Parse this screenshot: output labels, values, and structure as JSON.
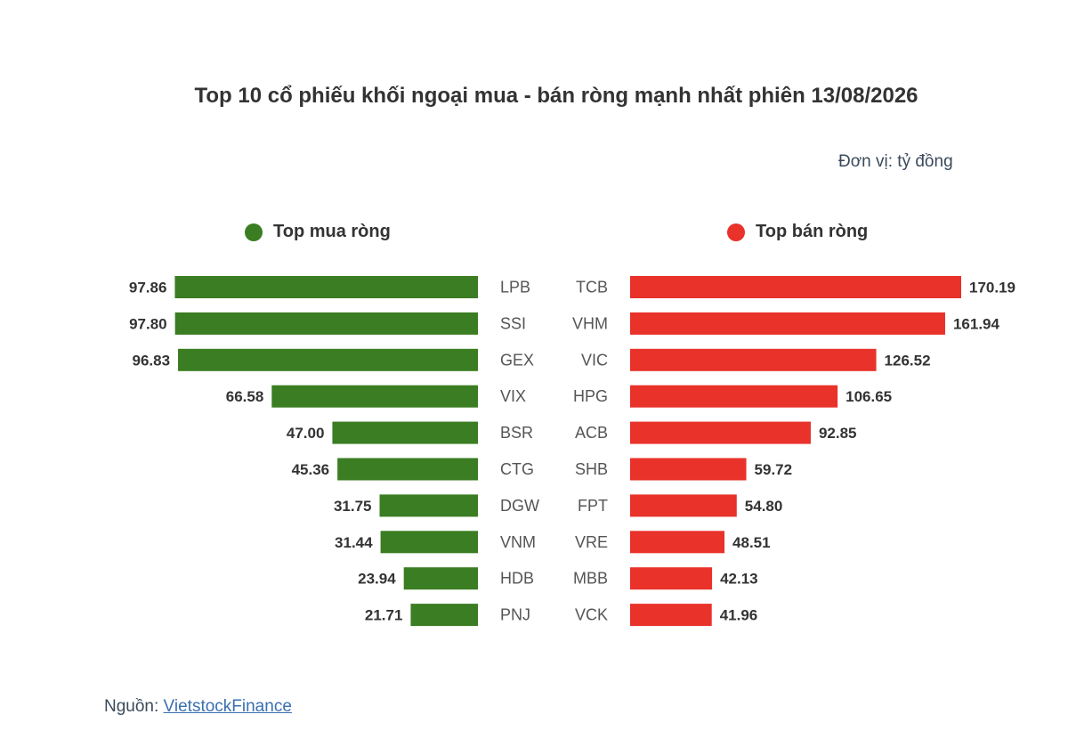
{
  "title": "Top 10 cổ phiếu khối ngoại mua -  bán ròng mạnh nhất phiên 13/08/2026",
  "unit_note": "Đơn vị: tỷ đồng",
  "source": {
    "prefix": "Nguồn: ",
    "link_text": "VietstockFinance"
  },
  "colors": {
    "buy": "#3a7d22",
    "sell": "#e8322a",
    "text": "#333333",
    "ticker": "#555555"
  },
  "chart_data": [
    {
      "type": "bar",
      "legend": "Top mua ròng",
      "color": "#3a7d22",
      "orientation": "horizontal",
      "direction": "leftward",
      "categories": [
        "LPB",
        "SSI",
        "GEX",
        "VIX",
        "BSR",
        "CTG",
        "DGW",
        "VNM",
        "HDB",
        "PNJ"
      ],
      "values": [
        97.86,
        97.8,
        96.83,
        66.58,
        47.0,
        45.36,
        31.75,
        31.44,
        23.94,
        21.71
      ],
      "value_labels": [
        "97.86",
        "97.80",
        "96.83",
        "66.58",
        "47.00",
        "45.36",
        "31.75",
        "31.44",
        "23.94",
        "21.71"
      ]
    },
    {
      "type": "bar",
      "legend": "Top bán ròng",
      "color": "#e8322a",
      "orientation": "horizontal",
      "direction": "rightward",
      "categories": [
        "TCB",
        "VHM",
        "VIC",
        "HPG",
        "ACB",
        "SHB",
        "FPT",
        "VRE",
        "MBB",
        "VCK"
      ],
      "values": [
        170.19,
        161.94,
        126.52,
        106.65,
        92.85,
        59.72,
        54.8,
        48.51,
        42.13,
        41.96
      ],
      "value_labels": [
        "170.19",
        "161.94",
        "126.52",
        "106.65",
        "92.85",
        "59.72",
        "54.80",
        "48.51",
        "42.13",
        "41.96"
      ]
    }
  ]
}
